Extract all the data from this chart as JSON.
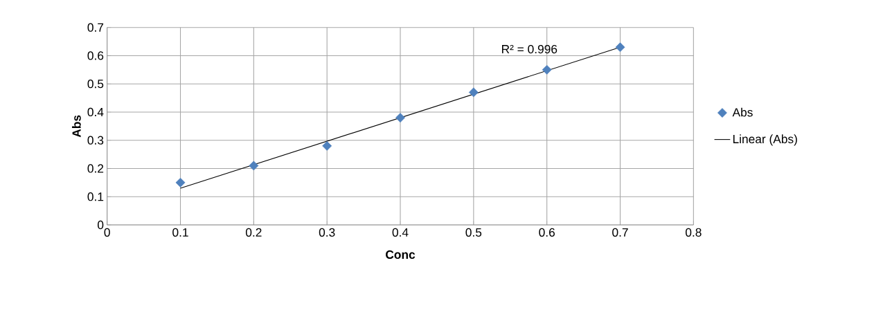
{
  "chart_data": {
    "type": "scatter",
    "xlabel": "Conc",
    "ylabel": "Abs",
    "x": [
      0.1,
      0.2,
      0.3,
      0.4,
      0.5,
      0.6,
      0.7
    ],
    "series": [
      {
        "name": "Abs",
        "color": "#4f81bd",
        "marker": "diamond",
        "values": [
          0.15,
          0.21,
          0.28,
          0.38,
          0.47,
          0.55,
          0.63
        ]
      },
      {
        "name": "Linear (Abs)",
        "type": "line",
        "marker": "none",
        "color": "#000000",
        "x": [
          0.1,
          0.7
        ],
        "values": [
          0.13,
          0.63
        ]
      }
    ],
    "annotations": [
      "R² = 0.996"
    ],
    "xlim": [
      0,
      0.8
    ],
    "ylim": [
      0,
      0.7
    ],
    "xticks": [
      0,
      0.1,
      0.2,
      0.3,
      0.4,
      0.5,
      0.6,
      0.7,
      0.8
    ],
    "yticks": [
      0,
      0.1,
      0.2,
      0.3,
      0.4,
      0.5,
      0.6,
      0.7
    ],
    "grid": true,
    "legend": "right"
  }
}
